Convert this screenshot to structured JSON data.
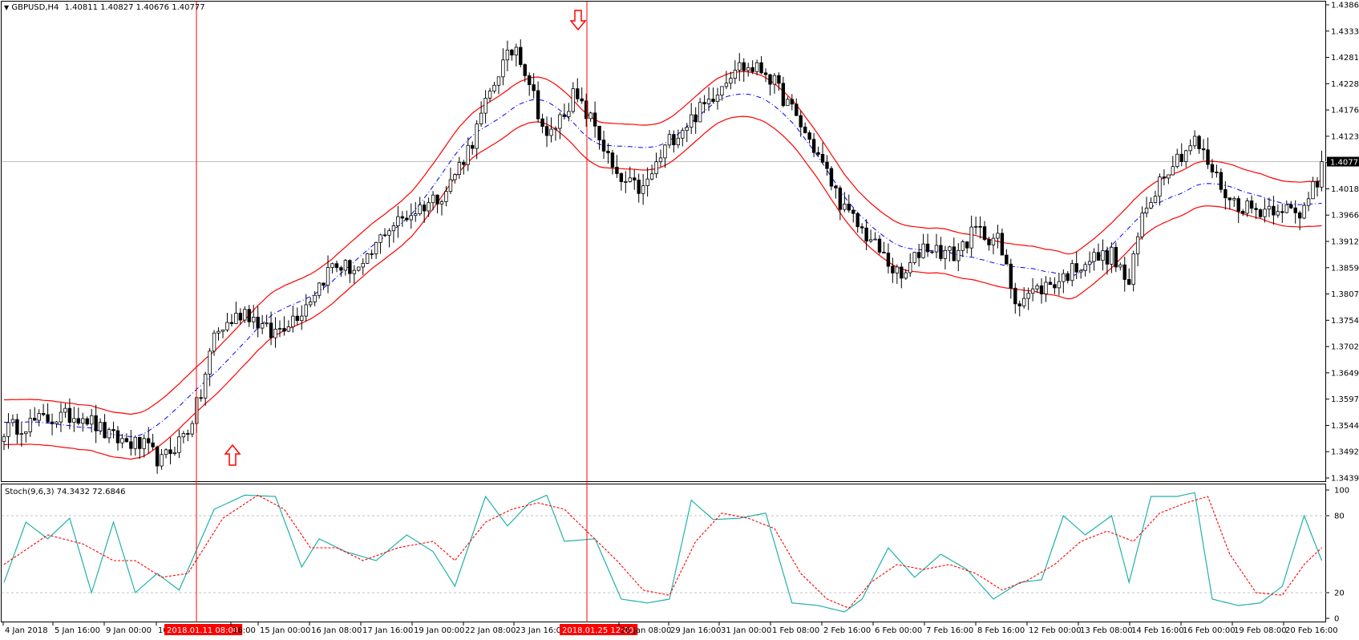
{
  "main_header": {
    "symbol": "GBPUSD,H4",
    "ohlc": "1.40811 1.40827 1.40676 1.40777"
  },
  "indicator_header": "Stoch(9,6,3) 74.3432 72.6846",
  "current_price_label": "1.40777",
  "price_axis_labels": [
    "1.43860",
    "1.43335",
    "1.42810",
    "1.42285",
    "1.41760",
    "1.41235",
    "1.40710",
    "1.40185",
    "1.39660",
    "1.39120",
    "1.38595",
    "1.38070",
    "1.37545",
    "1.37020",
    "1.36495",
    "1.35970",
    "1.35445",
    "1.34920",
    "1.34395"
  ],
  "stoch_axis_labels": [
    "100",
    "80",
    "20",
    "0"
  ],
  "time_axis_labels": [
    "4 Jan 2018",
    "5 Jan 16:00",
    "9 Jan 00:00",
    "10",
    "2018.01.11 08:00",
    "16:00",
    "15 Jan 00:00",
    "16 Jan 08:00",
    "17 Jan 16:00",
    "19 Jan 00:00",
    "22 Jan 08:00",
    "23 Jan 16:00",
    "2018.01.25 12:00",
    "26 Jan 08:00",
    "29 Jan 16:00",
    "31 Jan 00:00",
    "1 Feb 08:00",
    "2 Feb 16:00",
    "6 Feb 00:00",
    "7 Feb 16:00",
    "8 Feb 16:00",
    "12 Feb 00:00",
    "13 Feb 08:00",
    "14 Feb 16:00",
    "16 Feb 00:00",
    "19 Feb 08:00",
    "20 Feb 16:00"
  ],
  "colors": {
    "envelope": "#ff0000",
    "middle_line": "#0000ff",
    "stoch_main": "#20b2aa",
    "stoch_signal": "#ff0000",
    "marker_line": "#ff0000",
    "grid": "#c0c0c0"
  },
  "markers": [
    {
      "name": "buy-arrow-icon",
      "direction": "up",
      "price": 1.3485
    },
    {
      "name": "sell-arrow-icon",
      "direction": "down",
      "price": 1.4355
    }
  ],
  "chart_data": {
    "type": "candlestick",
    "symbol": "GBPUSD",
    "timeframe": "H4",
    "y_range": [
      1.34395,
      1.4386
    ],
    "last_price": 1.40777,
    "price_keyframes": [
      [
        0,
        1.354
      ],
      [
        9,
        1.356
      ],
      [
        18,
        1.357
      ],
      [
        24,
        1.3525
      ],
      [
        32,
        1.3505
      ],
      [
        36,
        1.3475
      ],
      [
        42,
        1.354
      ],
      [
        45,
        1.361
      ],
      [
        48,
        1.373
      ],
      [
        55,
        1.378
      ],
      [
        61,
        1.373
      ],
      [
        68,
        1.378
      ],
      [
        75,
        1.387
      ],
      [
        82,
        1.386
      ],
      [
        87,
        1.394
      ],
      [
        94,
        1.398
      ],
      [
        101,
        1.402
      ],
      [
        107,
        1.412
      ],
      [
        113,
        1.426
      ],
      [
        117,
        1.431
      ],
      [
        120,
        1.424
      ],
      [
        124,
        1.412
      ],
      [
        130,
        1.421
      ],
      [
        135,
        1.415
      ],
      [
        140,
        1.404
      ],
      [
        146,
        1.402
      ],
      [
        152,
        1.412
      ],
      [
        160,
        1.419
      ],
      [
        167,
        1.427
      ],
      [
        174,
        1.426
      ],
      [
        180,
        1.418
      ],
      [
        186,
        1.409
      ],
      [
        192,
        1.398
      ],
      [
        198,
        1.392
      ],
      [
        205,
        1.384
      ],
      [
        210,
        1.391
      ],
      [
        217,
        1.389
      ],
      [
        222,
        1.394
      ],
      [
        227,
        1.392
      ],
      [
        231,
        1.38
      ],
      [
        236,
        1.382
      ],
      [
        241,
        1.384
      ],
      [
        247,
        1.388
      ],
      [
        253,
        1.389
      ],
      [
        257,
        1.383
      ],
      [
        260,
        1.397
      ],
      [
        265,
        1.406
      ],
      [
        272,
        1.412
      ],
      [
        276,
        1.406
      ],
      [
        280,
        1.4
      ],
      [
        286,
        1.398
      ],
      [
        292,
        1.399
      ],
      [
        296,
        1.396
      ],
      [
        299,
        1.404
      ]
    ],
    "stoch_main_keyframes": [
      [
        0,
        28
      ],
      [
        5,
        75
      ],
      [
        10,
        62
      ],
      [
        15,
        78
      ],
      [
        20,
        20
      ],
      [
        25,
        75
      ],
      [
        30,
        20
      ],
      [
        35,
        35
      ],
      [
        40,
        22
      ],
      [
        48,
        85
      ],
      [
        55,
        96
      ],
      [
        62,
        95
      ],
      [
        68,
        40
      ],
      [
        72,
        62
      ],
      [
        78,
        52
      ],
      [
        85,
        45
      ],
      [
        92,
        65
      ],
      [
        98,
        52
      ],
      [
        103,
        25
      ],
      [
        110,
        95
      ],
      [
        115,
        72
      ],
      [
        120,
        90
      ],
      [
        124,
        96
      ],
      [
        128,
        60
      ],
      [
        135,
        62
      ],
      [
        141,
        15
      ],
      [
        147,
        12
      ],
      [
        152,
        15
      ],
      [
        157,
        92
      ],
      [
        162,
        77
      ],
      [
        168,
        78
      ],
      [
        174,
        82
      ],
      [
        180,
        12
      ],
      [
        186,
        10
      ],
      [
        192,
        5
      ],
      [
        196,
        15
      ],
      [
        202,
        55
      ],
      [
        208,
        32
      ],
      [
        214,
        50
      ],
      [
        220,
        38
      ],
      [
        226,
        15
      ],
      [
        232,
        28
      ],
      [
        237,
        30
      ],
      [
        242,
        80
      ],
      [
        247,
        65
      ],
      [
        253,
        80
      ],
      [
        257,
        28
      ],
      [
        262,
        95
      ],
      [
        268,
        95
      ],
      [
        272,
        98
      ],
      [
        276,
        15
      ],
      [
        282,
        10
      ],
      [
        287,
        12
      ],
      [
        292,
        25
      ],
      [
        297,
        80
      ],
      [
        301,
        45
      ]
    ],
    "stoch_signal_keyframes": [
      [
        0,
        42
      ],
      [
        10,
        65
      ],
      [
        18,
        58
      ],
      [
        25,
        45
      ],
      [
        30,
        45
      ],
      [
        36,
        32
      ],
      [
        42,
        35
      ],
      [
        50,
        78
      ],
      [
        58,
        96
      ],
      [
        64,
        85
      ],
      [
        70,
        55
      ],
      [
        76,
        55
      ],
      [
        82,
        45
      ],
      [
        90,
        55
      ],
      [
        98,
        60
      ],
      [
        103,
        45
      ],
      [
        110,
        75
      ],
      [
        116,
        85
      ],
      [
        122,
        90
      ],
      [
        128,
        85
      ],
      [
        134,
        65
      ],
      [
        140,
        45
      ],
      [
        146,
        22
      ],
      [
        152,
        18
      ],
      [
        158,
        60
      ],
      [
        164,
        82
      ],
      [
        170,
        78
      ],
      [
        176,
        70
      ],
      [
        182,
        35
      ],
      [
        188,
        15
      ],
      [
        193,
        8
      ],
      [
        198,
        28
      ],
      [
        204,
        42
      ],
      [
        210,
        38
      ],
      [
        216,
        42
      ],
      [
        222,
        35
      ],
      [
        228,
        22
      ],
      [
        234,
        30
      ],
      [
        240,
        42
      ],
      [
        246,
        60
      ],
      [
        252,
        68
      ],
      [
        258,
        60
      ],
      [
        264,
        82
      ],
      [
        270,
        90
      ],
      [
        275,
        95
      ],
      [
        280,
        50
      ],
      [
        286,
        20
      ],
      [
        292,
        18
      ],
      [
        297,
        42
      ],
      [
        301,
        55
      ]
    ],
    "stoch_levels": [
      20,
      80
    ],
    "vertical_markers": [
      "2018.01.11 08:00",
      "2018.01.25 12:00"
    ]
  }
}
